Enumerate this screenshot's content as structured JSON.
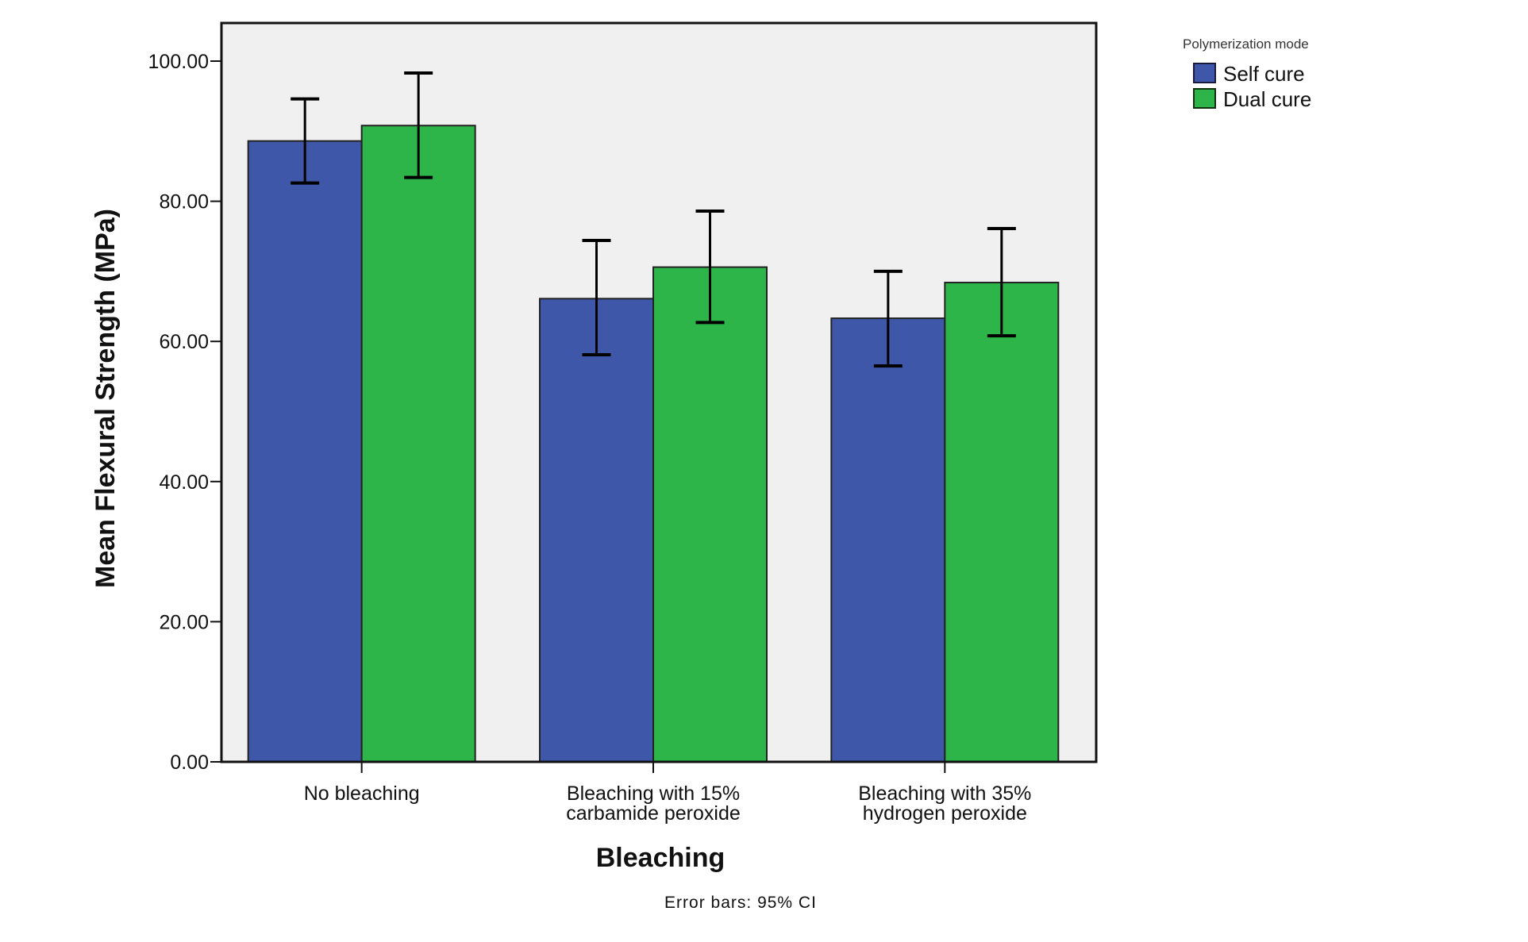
{
  "chart_data": {
    "type": "bar",
    "title": "",
    "xlabel": "Bleaching",
    "ylabel": "Mean Flexural Strength (MPa)",
    "ylim": [
      0,
      105
    ],
    "yticks": [
      0,
      20,
      40,
      60,
      80,
      100
    ],
    "ytick_labels": [
      "0.00",
      "20.00",
      "40.00",
      "60.00",
      "80.00",
      "100.00"
    ],
    "grid": false,
    "categories": [
      [
        "No bleaching"
      ],
      [
        "Bleaching with 15%",
        "carbamide peroxide"
      ],
      [
        "Bleaching with 35%",
        "hydrogen peroxide"
      ]
    ],
    "legend": {
      "title": "Polymerization mode",
      "placement": "top-right, outside plot"
    },
    "series": [
      {
        "name": "Self cure",
        "color": "#3f57a9",
        "values": [
          88.6,
          66.1,
          63.3
        ],
        "ci_low": [
          82.6,
          58.1,
          56.5
        ],
        "ci_high": [
          94.6,
          74.4,
          70.0
        ]
      },
      {
        "name": "Dual cure",
        "color": "#2db54a",
        "values": [
          90.8,
          70.6,
          68.4
        ],
        "ci_low": [
          83.4,
          62.7,
          60.8
        ],
        "ci_high": [
          98.3,
          78.6,
          76.1
        ]
      }
    ],
    "error_bars": "95% CI",
    "footnote": "Error bars: 95% CI",
    "plot_background": "#f0f0f0"
  }
}
